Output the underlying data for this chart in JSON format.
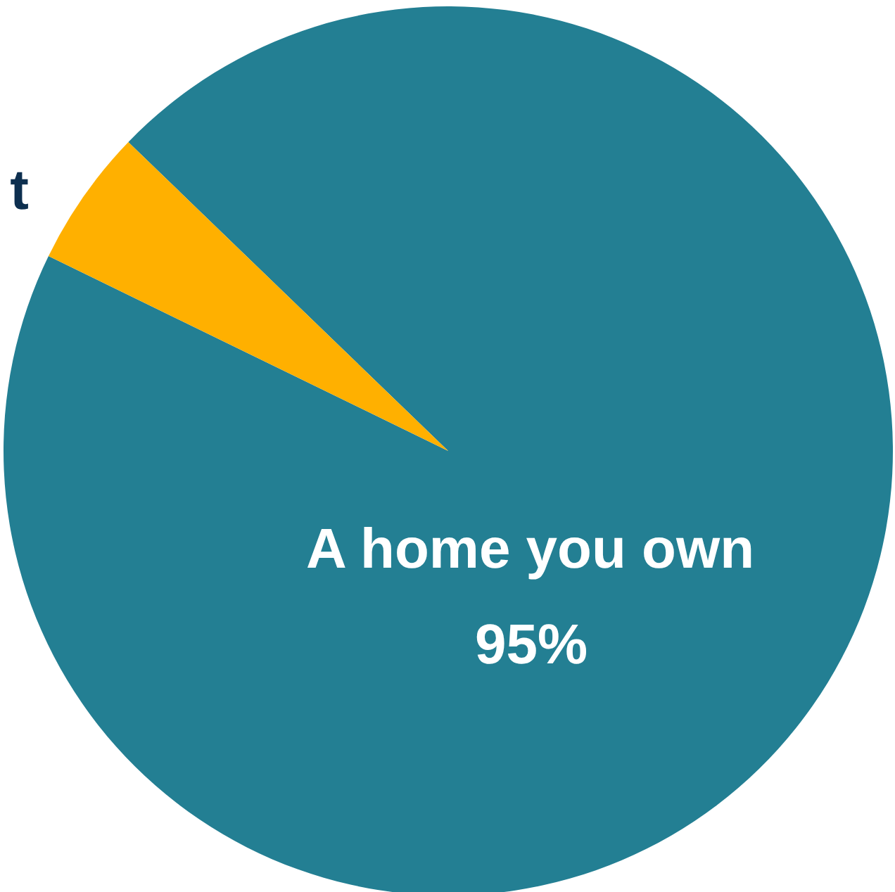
{
  "chart_data": {
    "type": "pie",
    "categories": [
      "A home you own",
      "t"
    ],
    "values": [
      95,
      5
    ],
    "colors": [
      "#237f93",
      "#ffb000"
    ],
    "value_labels": [
      "95%",
      null
    ]
  }
}
